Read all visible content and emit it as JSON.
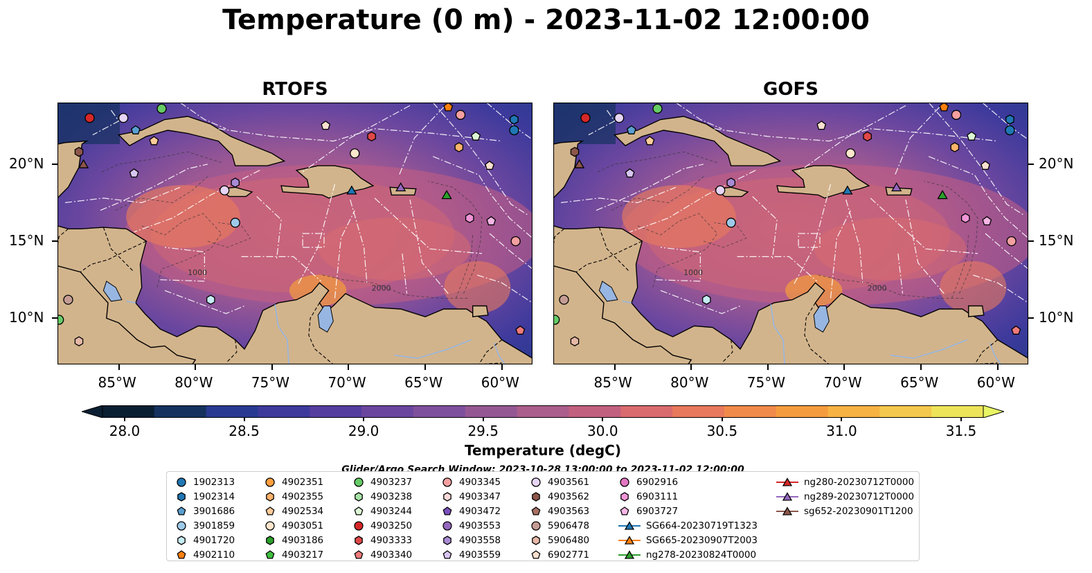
{
  "chart_data": {
    "type": "heatmap",
    "title": "Temperature (0 m) - 2023-11-02 12:00:00",
    "panels": [
      {
        "title": "RTOFS",
        "lon_range": [
          -89,
          -58
        ],
        "lat_range": [
          7,
          24
        ],
        "contour_labels": [
          "1000",
          "2000"
        ]
      },
      {
        "title": "GOFS",
        "lon_range": [
          -89,
          -58
        ],
        "lat_range": [
          7,
          24
        ],
        "contour_labels": [
          "1000",
          "2000"
        ]
      }
    ],
    "xticks": [
      "85°W",
      "80°W",
      "75°W",
      "70°W",
      "65°W",
      "60°W"
    ],
    "yticks": [
      "20°N",
      "15°N",
      "10°N"
    ],
    "colorbar": {
      "label": "Temperature (degC)",
      "range": [
        28.0,
        31.5
      ],
      "ticks": [
        "28.0",
        "28.5",
        "29.0",
        "29.5",
        "30.0",
        "30.5",
        "31.0",
        "31.5"
      ],
      "colors": [
        "#0b1f33",
        "#15325e",
        "#283a91",
        "#3d3a9c",
        "#553d9f",
        "#6a469f",
        "#7e4f9c",
        "#955794",
        "#ab5d8c",
        "#c26080",
        "#d96b6e",
        "#e8795d",
        "#f08a4a",
        "#f49c3d",
        "#f6b243",
        "#f4c84c",
        "#eee45a"
      ],
      "extend_low_color": "#0b1f33",
      "extend_high_color": "#e8f564"
    },
    "search_window": "Glider/Argo Search Window: 2023-10-28 13:00:00 to 2023-11-02 12:00:00",
    "legend": [
      {
        "label": "1902313",
        "marker": "circle",
        "color": "#1f77b4"
      },
      {
        "label": "1902314",
        "marker": "hexagon",
        "color": "#1f77b4"
      },
      {
        "label": "3901686",
        "marker": "pentagon",
        "color": "#5a9fd0"
      },
      {
        "label": "3901859",
        "marker": "circle",
        "color": "#9ecae9"
      },
      {
        "label": "4901720",
        "marker": "hexagon",
        "color": "#c6ecf5"
      },
      {
        "label": "4902110",
        "marker": "pentagon",
        "color": "#ff7f0e"
      },
      {
        "label": "4902351",
        "marker": "circle",
        "color": "#ff9f3e"
      },
      {
        "label": "4902355",
        "marker": "hexagon",
        "color": "#ffb36b"
      },
      {
        "label": "4902534",
        "marker": "pentagon",
        "color": "#ffcc99"
      },
      {
        "label": "4903051",
        "marker": "circle",
        "color": "#ffe6cc"
      },
      {
        "label": "4903186",
        "marker": "hexagon",
        "color": "#2ca02c"
      },
      {
        "label": "4903217",
        "marker": "pentagon",
        "color": "#3fbf3f"
      },
      {
        "label": "4903237",
        "marker": "circle",
        "color": "#66cc66"
      },
      {
        "label": "4903238",
        "marker": "hexagon",
        "color": "#a6e3a6"
      },
      {
        "label": "4903244",
        "marker": "pentagon",
        "color": "#ddf7d5"
      },
      {
        "label": "4903250",
        "marker": "circle",
        "color": "#d62728"
      },
      {
        "label": "4903333",
        "marker": "hexagon",
        "color": "#e04848"
      },
      {
        "label": "4903340",
        "marker": "pentagon",
        "color": "#f07b7b"
      },
      {
        "label": "4903345",
        "marker": "circle",
        "color": "#f5a0a0"
      },
      {
        "label": "4903347",
        "marker": "hexagon",
        "color": "#fcd9d9"
      },
      {
        "label": "4903472",
        "marker": "pentagon",
        "color": "#7b4fbd"
      },
      {
        "label": "4903553",
        "marker": "circle",
        "color": "#9467bd"
      },
      {
        "label": "4903558",
        "marker": "hexagon",
        "color": "#a98bd5"
      },
      {
        "label": "4903559",
        "marker": "pentagon",
        "color": "#d8c6f2"
      },
      {
        "label": "4903561",
        "marker": "circle",
        "color": "#e6d5f5"
      },
      {
        "label": "4903562",
        "marker": "hexagon",
        "color": "#8c564b"
      },
      {
        "label": "4903563",
        "marker": "pentagon",
        "color": "#a87064"
      },
      {
        "label": "5906478",
        "marker": "circle",
        "color": "#c49c94"
      },
      {
        "label": "5906480",
        "marker": "hexagon",
        "color": "#e6b8a8"
      },
      {
        "label": "6902771",
        "marker": "pentagon",
        "color": "#fbe0cf"
      },
      {
        "label": "6902916",
        "marker": "circle",
        "color": "#e377c2"
      },
      {
        "label": "6903111",
        "marker": "hexagon",
        "color": "#f095d6"
      },
      {
        "label": "6903727",
        "marker": "pentagon",
        "color": "#f7b6e5"
      },
      {
        "label": "SG664-20230719T1323",
        "marker": "triangle-line",
        "color": "#1f77b4"
      },
      {
        "label": "SG665-20230907T2003",
        "marker": "triangle-line",
        "color": "#ff7f0e"
      },
      {
        "label": "ng278-20230824T0000",
        "marker": "triangle-line",
        "color": "#2ca02c"
      },
      {
        "label": "ng280-20230712T0000",
        "marker": "triangle-line",
        "color": "#d62728"
      },
      {
        "label": "ng289-20230712T0000",
        "marker": "triangle-line",
        "color": "#9467bd"
      },
      {
        "label": "sg652-20230901T1200",
        "marker": "triangle-line",
        "color": "#8c564b"
      }
    ],
    "points": [
      {
        "id": "4903250",
        "lon": -86.9,
        "lat": 23.0
      },
      {
        "id": "4903561",
        "lon": -84.7,
        "lat": 23.0
      },
      {
        "id": "4903237",
        "lon": -82.2,
        "lat": 23.6
      },
      {
        "id": "4902110",
        "lon": -63.5,
        "lat": 23.7
      },
      {
        "id": "4903345",
        "lon": -62.7,
        "lat": 23.2
      },
      {
        "id": "1902314",
        "lon": -59.2,
        "lat": 22.9
      },
      {
        "id": "1902313",
        "lon": -59.2,
        "lat": 22.2
      },
      {
        "id": "6902771",
        "lon": -71.5,
        "lat": 22.5
      },
      {
        "id": "4903333",
        "lon": -68.5,
        "lat": 21.8
      },
      {
        "id": "4903244",
        "lon": -61.7,
        "lat": 21.8
      },
      {
        "id": "3901686",
        "lon": -83.9,
        "lat": 22.2
      },
      {
        "id": "4902534",
        "lon": -82.7,
        "lat": 21.5
      },
      {
        "id": "4903562",
        "lon": -87.6,
        "lat": 20.8
      },
      {
        "id": "4902355",
        "lon": -62.8,
        "lat": 21.1
      },
      {
        "id": "4903051",
        "lon": -69.6,
        "lat": 20.7
      },
      {
        "id": "sg652-20230901T1200",
        "lon": -87.3,
        "lat": 20.0
      },
      {
        "id": "4903559",
        "lon": -84.0,
        "lat": 19.4
      },
      {
        "id": "6902771",
        "lon": -60.8,
        "lat": 19.9
      },
      {
        "id": "4903561",
        "lon": -78.1,
        "lat": 18.3
      },
      {
        "id": "4903558",
        "lon": -77.4,
        "lat": 18.8
      },
      {
        "id": "SG664-20230719T1323",
        "lon": -69.8,
        "lat": 18.3
      },
      {
        "id": "ng289-20230712T0000",
        "lon": -66.6,
        "lat": 18.5
      },
      {
        "id": "ng278-20230824T0000",
        "lon": -63.6,
        "lat": 18.0
      },
      {
        "id": "3901859",
        "lon": -77.4,
        "lat": 16.2
      },
      {
        "id": "6903111",
        "lon": -62.1,
        "lat": 16.5
      },
      {
        "id": "6903727",
        "lon": -60.7,
        "lat": 16.3
      },
      {
        "id": "4903345",
        "lon": -59.1,
        "lat": 15.0
      },
      {
        "id": "4901720",
        "lon": -79.0,
        "lat": 11.2
      },
      {
        "id": "5906478",
        "lon": -88.3,
        "lat": 11.2
      },
      {
        "id": "5906480",
        "lon": -87.6,
        "lat": 8.5
      },
      {
        "id": "4903340",
        "lon": -58.8,
        "lat": 9.2
      },
      {
        "id": "4903237",
        "lon": -88.9,
        "lat": 9.9
      }
    ],
    "grid": false,
    "legend_placement": "bottom"
  }
}
